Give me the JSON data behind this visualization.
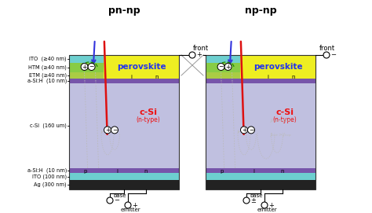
{
  "title_left": "pn-np",
  "title_right": "np-np",
  "label_ito_top": "ITO  (≥40 nm)",
  "label_htm": "HTM (≥40 nm)",
  "label_etm": "ETM (≥40 nm)",
  "label_asi_top": "a-Si:H  (10 nm)",
  "label_csi": "c-Si  (160 um)",
  "label_asi_bot": "a-Si:H  (10 nm)",
  "label_ito_bot": "ITO (100 nm)",
  "label_ag": "Ag (300 nm)",
  "color_ito": "#6dcfcf",
  "color_htm": "#88cc44",
  "color_etm": "#aacc44",
  "color_perov": "#eeee22",
  "color_asi": "#7755aa",
  "color_csi": "#c0c0e0",
  "color_ag": "#222222",
  "color_perov_text": "#2233ee",
  "color_csi_text": "#ee1111",
  "color_black": "#000000",
  "color_gray": "#888888",
  "color_lgray": "#bbbbbb",
  "color_green": "#228800"
}
